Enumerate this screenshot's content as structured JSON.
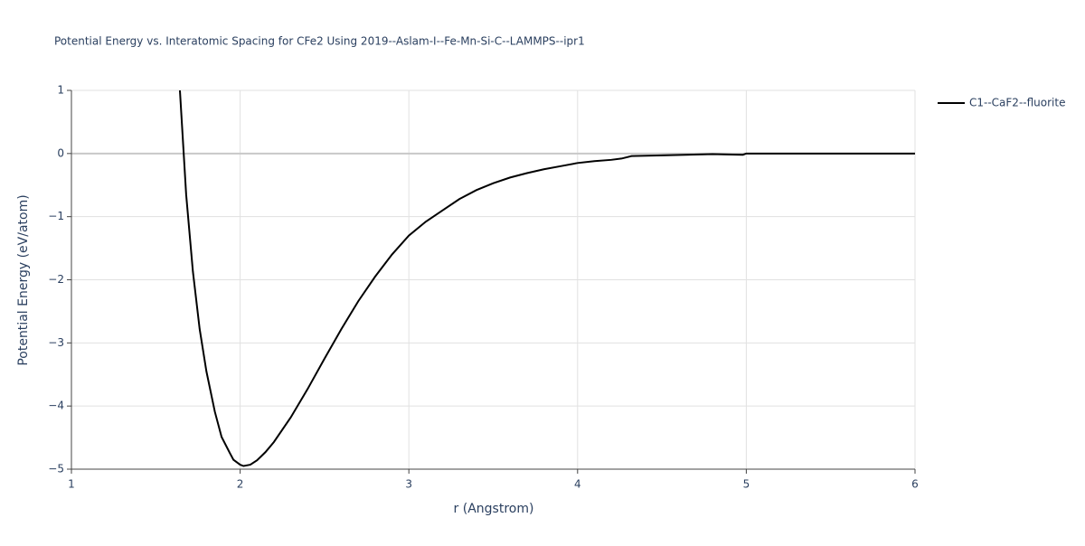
{
  "chart_data": {
    "type": "line",
    "title": "Potential Energy vs. Interatomic Spacing for CFe2 Using 2019--Aslam-I--Fe-Mn-Si-C--LAMMPS--ipr1",
    "x_label": "r (Angstrom)",
    "y_label": "Potential Energy (eV/atom)",
    "xlim": [
      1,
      6
    ],
    "ylim": [
      -5,
      1
    ],
    "xticks": [
      1,
      2,
      3,
      4,
      5,
      6
    ],
    "yticks": [
      {
        "value": -5,
        "label": "−5"
      },
      {
        "value": -4,
        "label": "−4"
      },
      {
        "value": -3,
        "label": "−3"
      },
      {
        "value": -2,
        "label": "−2"
      },
      {
        "value": -1,
        "label": "−1"
      },
      0,
      1
    ],
    "grid": true,
    "legend": "right",
    "x": [
      1.643,
      1.68,
      1.72,
      1.76,
      1.8,
      1.85,
      1.89,
      1.94,
      1.96,
      2.0,
      2.02,
      2.06,
      2.1,
      2.15,
      2.2,
      2.3,
      2.4,
      2.5,
      2.6,
      2.7,
      2.8,
      2.9,
      3.0,
      3.1,
      3.2,
      3.3,
      3.4,
      3.5,
      3.6,
      3.7,
      3.8,
      3.9,
      4.0,
      4.1,
      4.2,
      4.26,
      4.32,
      4.5,
      4.8,
      4.98,
      5.0,
      5.5,
      6.0
    ],
    "series": [
      {
        "name": "C1--CaF2--fluorite",
        "color": "#000000",
        "values": [
          1,
          -0.65,
          -1.87,
          -2.78,
          -3.45,
          -4.09,
          -4.49,
          -4.75,
          -4.85,
          -4.93,
          -4.95,
          -4.93,
          -4.86,
          -4.73,
          -4.57,
          -4.18,
          -3.73,
          -3.25,
          -2.78,
          -2.34,
          -1.95,
          -1.6,
          -1.3,
          -1.08,
          -0.9,
          -0.72,
          -0.58,
          -0.47,
          -0.38,
          -0.31,
          -0.25,
          -0.2,
          -0.15,
          -0.12,
          -0.1,
          -0.08,
          -0.04,
          -0.03,
          -0.01,
          -0.02,
          0,
          0,
          0
        ]
      }
    ]
  }
}
